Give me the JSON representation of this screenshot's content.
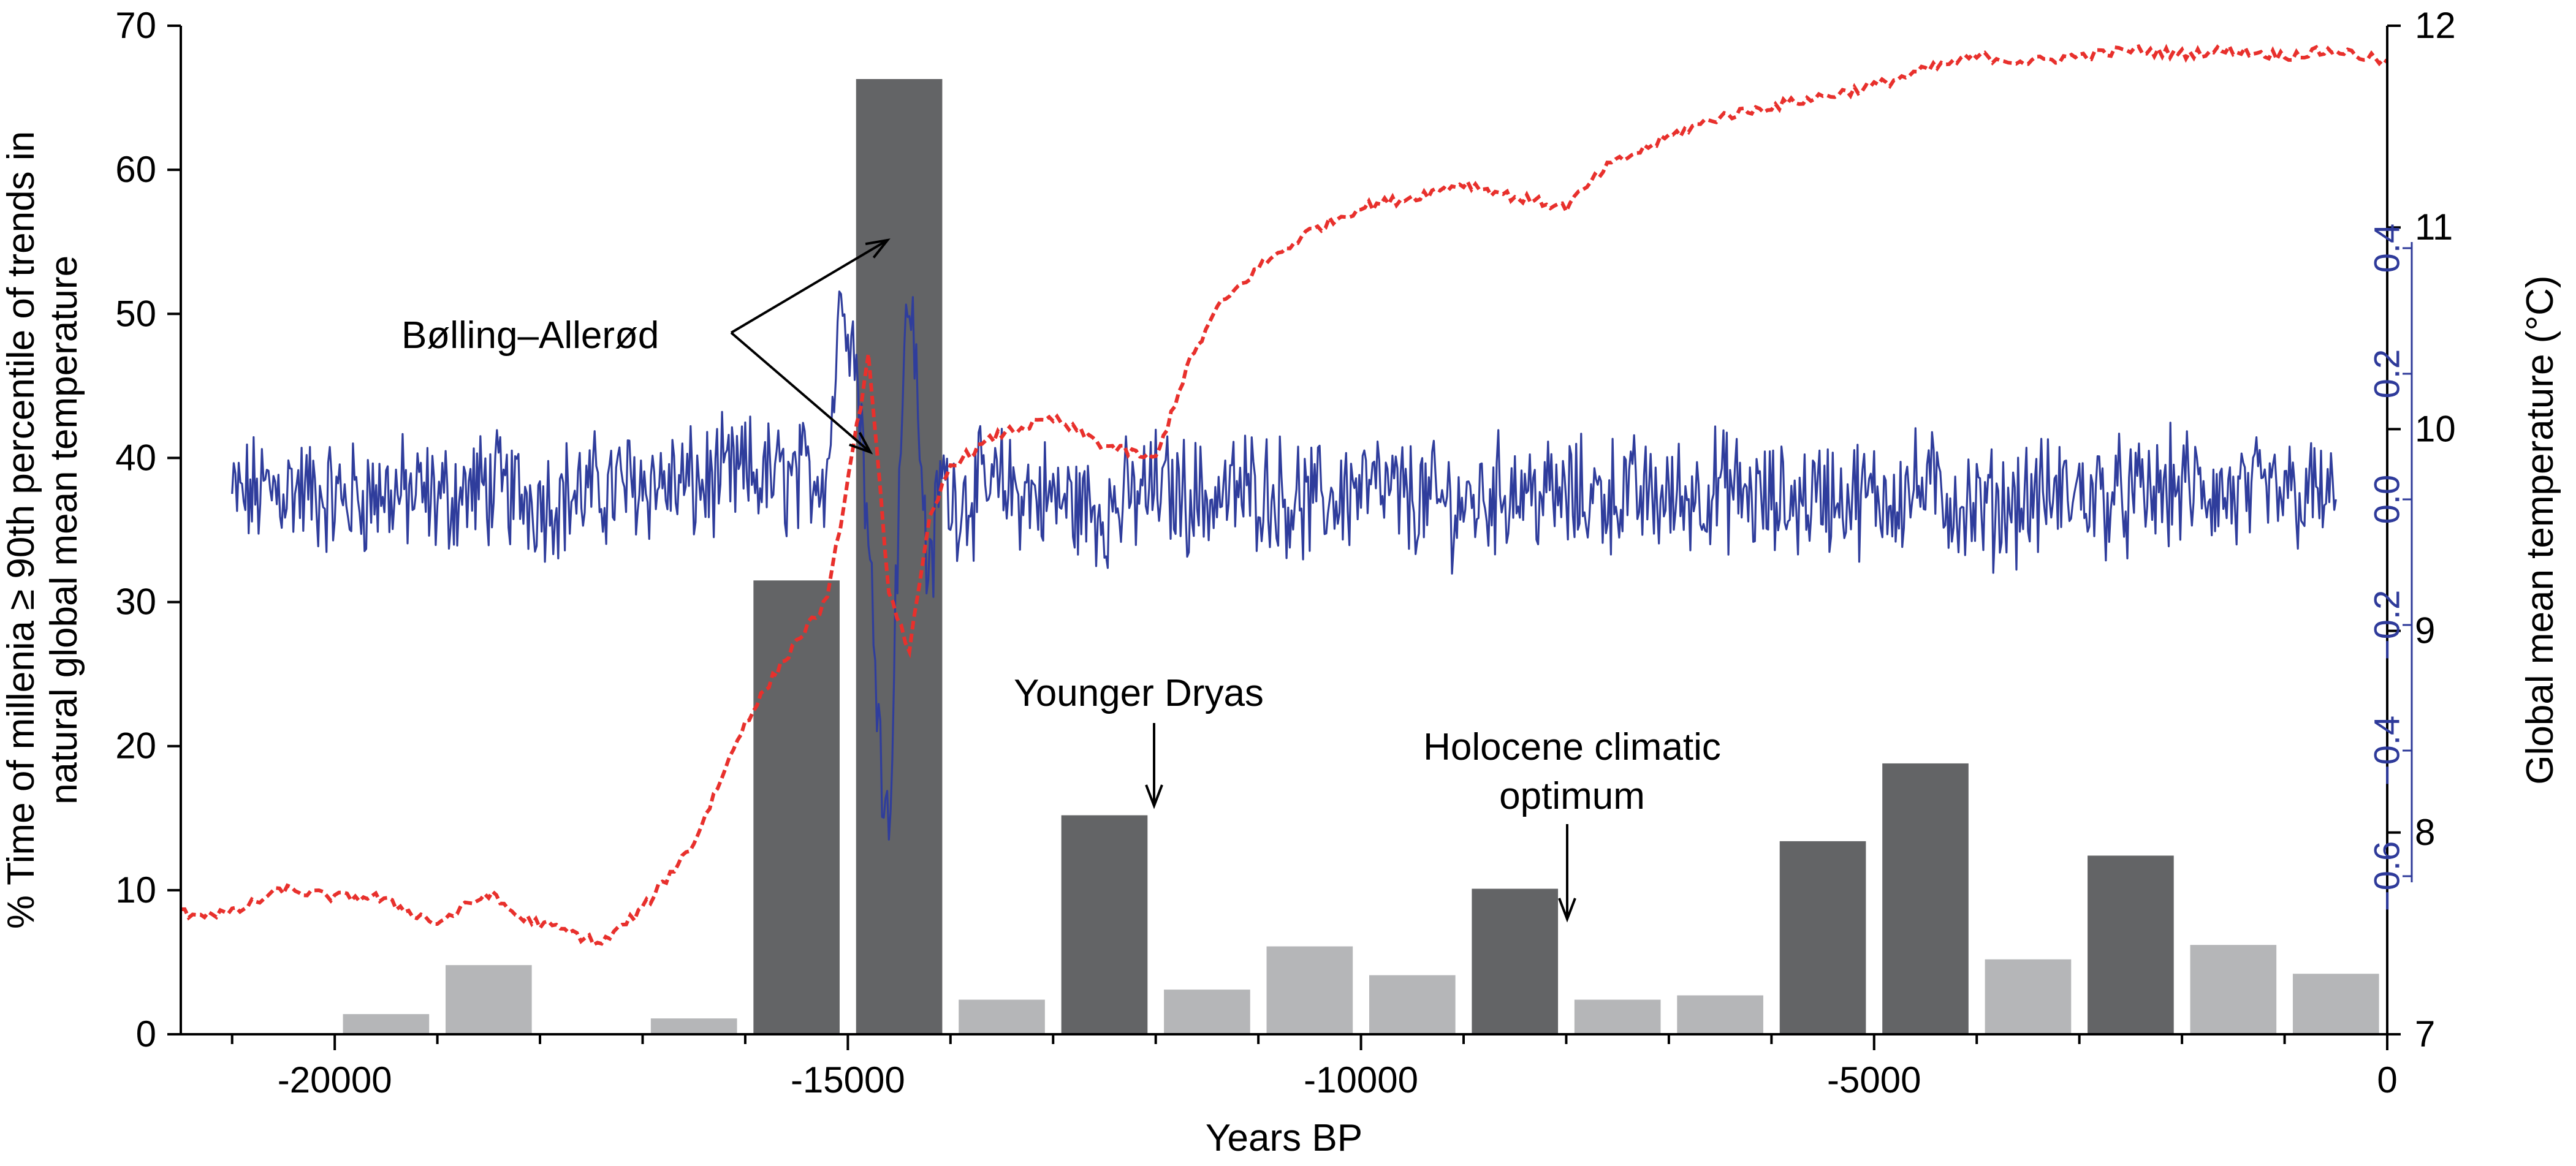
{
  "chart_data": {
    "type": "bar",
    "xlabel": "Years BP",
    "ylabel_left": "% Time of millenia ≥ 90th percentile of  trends in natural global mean temperature",
    "ylabel_left_lines": [
      "% Time of millenia ≥ 90th percentile of  trends in",
      "natural global mean temperature"
    ],
    "ylabel_right": "Global mean temperature (°C)",
    "xlim": [
      -21500,
      0
    ],
    "ylim_left": [
      0,
      70
    ],
    "ylim_right": [
      7,
      12
    ],
    "ylim_inset": [
      -0.6,
      0.4
    ],
    "x_ticks": [
      -20000,
      -15000,
      -10000,
      -5000,
      0
    ],
    "x_tick_labels": [
      "-20000",
      "-15000",
      "-10000",
      "-5000",
      "0"
    ],
    "y_left_ticks": [
      0,
      10,
      20,
      30,
      40,
      50,
      60,
      70
    ],
    "y_right_ticks": [
      7,
      8,
      9,
      10,
      11,
      12
    ],
    "inset_ticks": [
      0.4,
      0.2,
      0.0,
      -0.2,
      -0.4,
      -0.6
    ],
    "inset_tick_labels": [
      "0.4",
      "0.2",
      "0.0",
      "−0.2",
      "−0.4",
      "−0.6"
    ],
    "bars": {
      "centers": [
        -20500,
        -19500,
        -18500,
        -17500,
        -16500,
        -15500,
        -14500,
        -13500,
        -12500,
        -11500,
        -10500,
        -9500,
        -8500,
        -7500,
        -6500,
        -5500,
        -4500,
        -3500,
        -2500,
        -1500,
        -500
      ],
      "values": [
        0,
        1.4,
        4.8,
        0,
        1.1,
        31.5,
        66.3,
        2.4,
        15.2,
        3.1,
        6.1,
        4.1,
        10.1,
        2.4,
        2.7,
        13.4,
        18.8,
        5.2,
        12.4,
        6.2,
        4.2
      ],
      "significant": [
        false,
        false,
        false,
        false,
        false,
        true,
        true,
        false,
        true,
        false,
        false,
        false,
        true,
        false,
        false,
        true,
        true,
        false,
        true,
        false,
        false
      ],
      "color_significant": "#636466",
      "color_other": "#b5b6b8"
    },
    "series": [
      {
        "role": "global mean temperature",
        "axis": "right",
        "color": "#e8302c",
        "style": "dashed",
        "x": [
          -21500,
          -21000,
          -20500,
          -20000,
          -19600,
          -19000,
          -18500,
          -18200,
          -17800,
          -17400,
          -17000,
          -16500,
          -16000,
          -15500,
          -15200,
          -14950,
          -14800,
          -14600,
          -14400,
          -14200,
          -14000,
          -13500,
          -13000,
          -12500,
          -12000,
          -11700,
          -11400,
          -11000,
          -10500,
          -10000,
          -9500,
          -9000,
          -8500,
          -8000,
          -7600,
          -7000,
          -6500,
          -6000,
          -5500,
          -5000,
          -4500,
          -4000,
          -3500,
          -3000,
          -2500,
          -2000,
          -1500,
          -1000,
          -500,
          0
        ],
        "y": [
          7.6,
          7.6,
          7.72,
          7.68,
          7.68,
          7.55,
          7.7,
          7.58,
          7.52,
          7.45,
          7.62,
          7.95,
          8.55,
          8.95,
          9.15,
          9.9,
          10.35,
          9.2,
          8.9,
          9.55,
          9.82,
          9.98,
          10.05,
          9.92,
          9.85,
          10.3,
          10.6,
          10.8,
          10.98,
          11.1,
          11.15,
          11.22,
          11.15,
          11.1,
          11.3,
          11.45,
          11.55,
          11.6,
          11.65,
          11.7,
          11.78,
          11.85,
          11.82,
          11.85,
          11.88,
          11.86,
          11.88,
          11.85,
          11.88,
          11.82
        ]
      },
      {
        "role": "temperature trend",
        "axis": "inset",
        "color": "#2f3d9c",
        "style": "solid",
        "x": [
          -21000,
          -20500,
          -20000,
          -19500,
          -19000,
          -18500,
          -18000,
          -17500,
          -17000,
          -16500,
          -16000,
          -15500,
          -15200,
          -15050,
          -14950,
          -14850,
          -14800,
          -14700,
          -14650,
          -14600,
          -14500,
          -14400,
          -14300,
          -14200,
          -14100,
          -14000,
          -13500,
          -13000,
          -12500,
          -12000,
          -11500,
          -11000,
          -10500,
          -10000,
          -9500,
          -9000,
          -8500,
          -8000,
          -7500,
          -7000,
          -6500,
          -6000,
          -5500,
          -5000,
          -4500,
          -4000,
          -3500,
          -3000,
          -2500,
          -2000,
          -1500,
          -1000,
          -500
        ],
        "y": [
          0.0,
          0.02,
          0.0,
          0.01,
          0.0,
          0.02,
          0.0,
          0.01,
          0.03,
          0.02,
          0.04,
          0.03,
          0.05,
          0.35,
          0.25,
          0.1,
          -0.1,
          -0.3,
          -0.45,
          -0.55,
          0.05,
          0.35,
          0.1,
          -0.15,
          0.05,
          0.0,
          0.02,
          0.0,
          -0.02,
          0.02,
          0.0,
          0.02,
          -0.01,
          0.02,
          0.0,
          -0.01,
          0.02,
          0.0,
          0.01,
          0.0,
          0.02,
          -0.01,
          0.01,
          0.0,
          0.02,
          -0.02,
          0.0,
          0.01,
          0.0,
          0.02,
          0.0,
          0.01,
          0.0
        ]
      }
    ],
    "annotations": [
      {
        "text": "Bølling–Allerød",
        "lines": [
          "Bølling–Allerød"
        ]
      },
      {
        "text": "Younger Dryas",
        "lines": [
          "Younger Dryas"
        ]
      },
      {
        "text": "Holocene climatic optimum",
        "lines": [
          "Holocene climatic",
          "optimum"
        ]
      }
    ]
  }
}
